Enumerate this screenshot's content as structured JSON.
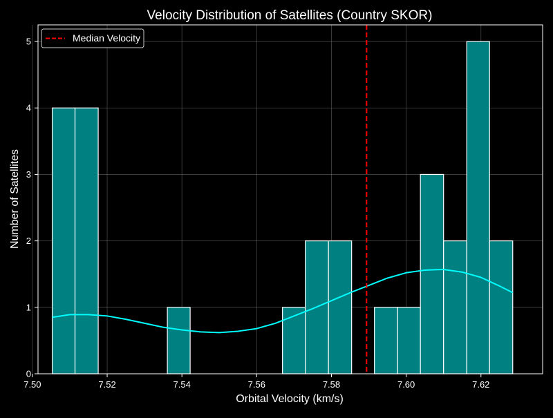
{
  "chart_data": {
    "type": "bar",
    "title": "Velocity Distribution of Satellites (Country SKOR)",
    "xlabel": "Orbital Velocity (km/s)",
    "ylabel": "Number of Satellites",
    "xlim": [
      7.5015,
      7.6365
    ],
    "ylim": [
      0,
      5.25
    ],
    "xticks": [
      7.5,
      7.52,
      7.54,
      7.56,
      7.58,
      7.6,
      7.62
    ],
    "xtick_labels": [
      "7.50",
      "7.52",
      "7.54",
      "7.56",
      "7.58",
      "7.60",
      "7.62"
    ],
    "yticks": [
      0,
      1,
      2,
      3,
      4,
      5
    ],
    "ytick_labels": [
      "0",
      "1",
      "2",
      "3",
      "4",
      "5"
    ],
    "grid": true,
    "bins": {
      "edges": [
        7.5053,
        7.5114,
        7.5176,
        7.5238,
        7.5299,
        7.5361,
        7.5422,
        7.5484,
        7.5546,
        7.5607,
        7.5669,
        7.573,
        7.5792,
        7.5854,
        7.5915,
        7.5977,
        7.6038,
        7.61,
        7.6162,
        7.6223,
        7.6285
      ],
      "counts": [
        4,
        4,
        0,
        0,
        0,
        1,
        0,
        0,
        0,
        0,
        1,
        2,
        2,
        0,
        1,
        1,
        3,
        2,
        5,
        2
      ]
    },
    "kde": {
      "name": "",
      "x": [
        7.5053,
        7.51,
        7.515,
        7.52,
        7.525,
        7.53,
        7.535,
        7.54,
        7.545,
        7.55,
        7.555,
        7.56,
        7.565,
        7.57,
        7.575,
        7.58,
        7.585,
        7.59,
        7.595,
        7.6,
        7.605,
        7.61,
        7.615,
        7.62,
        7.625,
        7.6285
      ],
      "y": [
        0.85,
        0.89,
        0.89,
        0.87,
        0.82,
        0.76,
        0.7,
        0.66,
        0.63,
        0.62,
        0.64,
        0.68,
        0.76,
        0.87,
        0.98,
        1.1,
        1.22,
        1.33,
        1.44,
        1.52,
        1.56,
        1.57,
        1.53,
        1.45,
        1.32,
        1.22
      ]
    },
    "median": {
      "label": "Median Velocity",
      "value": 7.5894
    },
    "legend_position": "top-left",
    "colors": {
      "background": "#000000",
      "bar_fill": "#008080",
      "bar_edge": "#ffffff",
      "kde_line": "#00ffff",
      "median_line": "#ff0000",
      "grid": "#808080",
      "text": "#ffffff"
    }
  }
}
